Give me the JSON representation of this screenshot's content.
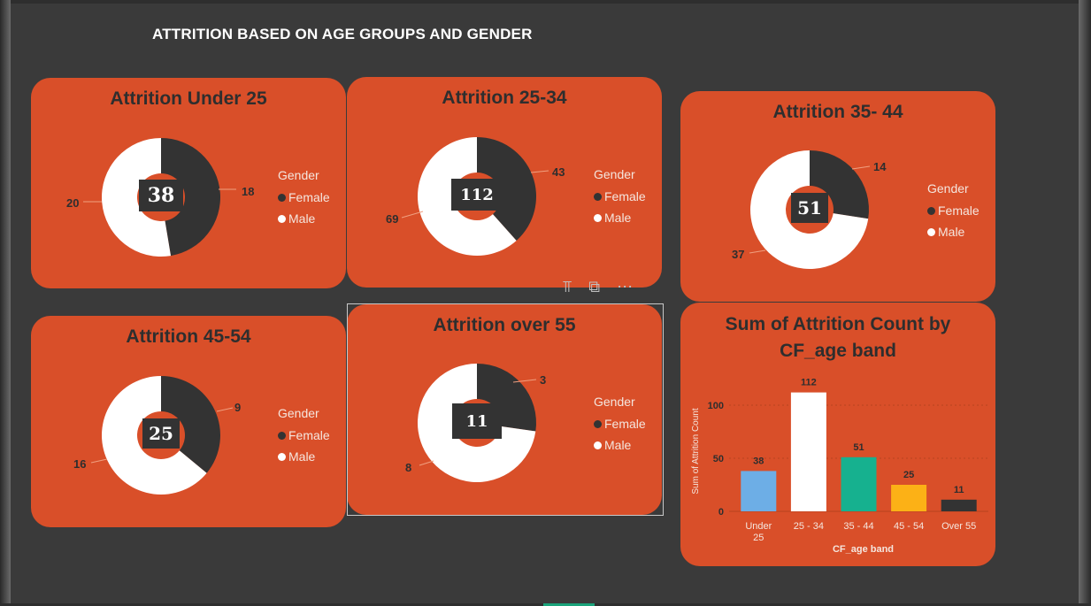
{
  "page": {
    "title": "ATTRITION BASED ON AGE GROUPS AND GENDER",
    "toolbar": {
      "filter_icon": "filter-icon",
      "focus_icon": "focus-mode-icon",
      "more_icon": "more-options-icon"
    }
  },
  "colors": {
    "female": "#333333",
    "male": "#ffffff",
    "card": "#d94f29",
    "background": "#3a3a3a"
  },
  "legend": {
    "title": "Gender",
    "female": "Female",
    "male": "Male"
  },
  "chart_data": [
    {
      "type": "pie",
      "title": "Attrition Under 25",
      "total": "38",
      "slices": [
        {
          "label": "Female",
          "value": 18
        },
        {
          "label": "Male",
          "value": 20
        }
      ]
    },
    {
      "type": "pie",
      "title": "Attrition 25-34",
      "total": "112",
      "slices": [
        {
          "label": "Female",
          "value": 43
        },
        {
          "label": "Male",
          "value": 69
        }
      ]
    },
    {
      "type": "pie",
      "title": "Attrition 35- 44",
      "total": "51",
      "slices": [
        {
          "label": "Female",
          "value": 14
        },
        {
          "label": "Male",
          "value": 37
        }
      ]
    },
    {
      "type": "pie",
      "title": "Attrition 45-54",
      "total": "25",
      "slices": [
        {
          "label": "Female",
          "value": 9
        },
        {
          "label": "Male",
          "value": 16
        }
      ]
    },
    {
      "type": "pie",
      "title": "Attrition over 55",
      "total": "11",
      "slices": [
        {
          "label": "Female",
          "value": 3
        },
        {
          "label": "Male",
          "value": 8
        }
      ]
    },
    {
      "type": "bar",
      "title": "Sum of Attrition Count by CF_age band",
      "categories": [
        "Under 25",
        "25 - 34",
        "35 - 44",
        "45 - 54",
        "Over 55"
      ],
      "values": [
        38,
        112,
        51,
        25,
        11
      ],
      "bar_colors": [
        "#6daee6",
        "#ffffff",
        "#16b18f",
        "#fcb116",
        "#333333"
      ],
      "xlabel": "CF_age band",
      "ylabel": "Sum of Attrition Count",
      "yticks": [
        "0",
        "50",
        "100"
      ],
      "ylim": [
        0,
        120
      ]
    }
  ]
}
